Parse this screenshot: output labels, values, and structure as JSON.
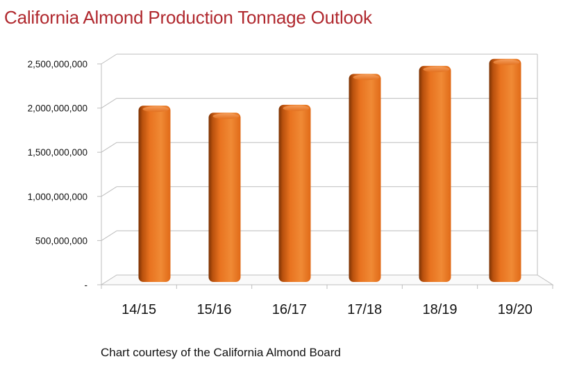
{
  "title": "California Almond Production Tonnage Outlook",
  "credit": "Chart courtesy of the California Almond Board",
  "colors": {
    "title": "#b0282e",
    "bar": "#ee7623",
    "bar_dark": "#8a3a05",
    "grid": "#bdbdbd"
  },
  "chart_data": {
    "type": "bar",
    "categories": [
      "14/15",
      "15/16",
      "16/17",
      "17/18",
      "18/19",
      "19/20"
    ],
    "values": [
      1870000000,
      1790000000,
      1880000000,
      2230000000,
      2320000000,
      2400000000
    ],
    "yticks": [
      0,
      500000000,
      1000000000,
      1500000000,
      2000000000,
      2500000000
    ],
    "ytick_labels": [
      "-",
      "500,000,000",
      "1,000,000,000",
      "1,500,000,000",
      "2,000,000,000",
      "2,500,000,000"
    ],
    "ylim": [
      0,
      2500000000
    ],
    "xlabel": "",
    "ylabel": "",
    "grid": true,
    "legend": "none"
  }
}
